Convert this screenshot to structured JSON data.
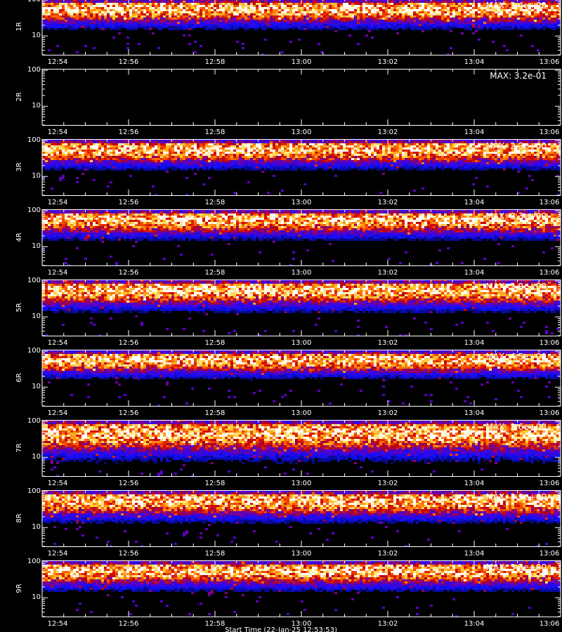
{
  "chart_data": {
    "type": "heatmap",
    "time_ticks": [
      "12:54",
      "12:56",
      "12:58",
      "13:00",
      "13:02",
      "13:04",
      "13:06"
    ],
    "y_ticks": [
      {
        "label": "100",
        "value": 100
      },
      {
        "label": "10",
        "value": 10
      }
    ],
    "y_scale": "log",
    "ylim": [
      3,
      110
    ],
    "xlabel": "",
    "colormap": [
      "#000000",
      "#1010ff",
      "#5a00c8",
      "#c80000",
      "#ff6000",
      "#ffd030",
      "#ffffff"
    ],
    "panels": [
      {
        "label": "1R",
        "max_label": "MAX: 3.4e+00",
        "max_value": 3.4,
        "band_center": 60,
        "band_spread": 0.55,
        "floor": 10
      },
      {
        "label": "2R",
        "max_label": "MAX: 3.2e-01",
        "max_value": 0.32,
        "band_center": 60,
        "band_spread": 0.0,
        "floor": 10
      },
      {
        "label": "3R",
        "max_label": "MAX: 2.3e+00",
        "max_value": 2.3,
        "band_center": 60,
        "band_spread": 0.55,
        "floor": 10
      },
      {
        "label": "4R",
        "max_label": "MAX: 3.3e+00",
        "max_value": 3.3,
        "band_center": 60,
        "band_spread": 0.55,
        "floor": 10
      },
      {
        "label": "5R",
        "max_label": "MAX: 2.9e+00",
        "max_value": 2.9,
        "band_center": 60,
        "band_spread": 0.6,
        "floor": 9
      },
      {
        "label": "6R",
        "max_label": "MAX: 4.5e+00",
        "max_value": 4.5,
        "band_center": 60,
        "band_spread": 0.5,
        "floor": 12
      },
      {
        "label": "7R",
        "max_label": "MAX: 2.6e+00",
        "max_value": 2.6,
        "band_center": 50,
        "band_spread": 0.75,
        "floor": 8
      },
      {
        "label": "8R",
        "max_label": "MAX: 3.9e+00",
        "max_value": 3.9,
        "band_center": 60,
        "band_spread": 0.6,
        "floor": 8
      },
      {
        "label": "9R",
        "max_label": "MAX: 3.3e+00",
        "max_value": 3.3,
        "band_center": 60,
        "band_spread": 0.55,
        "floor": 10
      }
    ]
  },
  "footer_text": "Start Time (22-Jan-25 12:53:53)"
}
